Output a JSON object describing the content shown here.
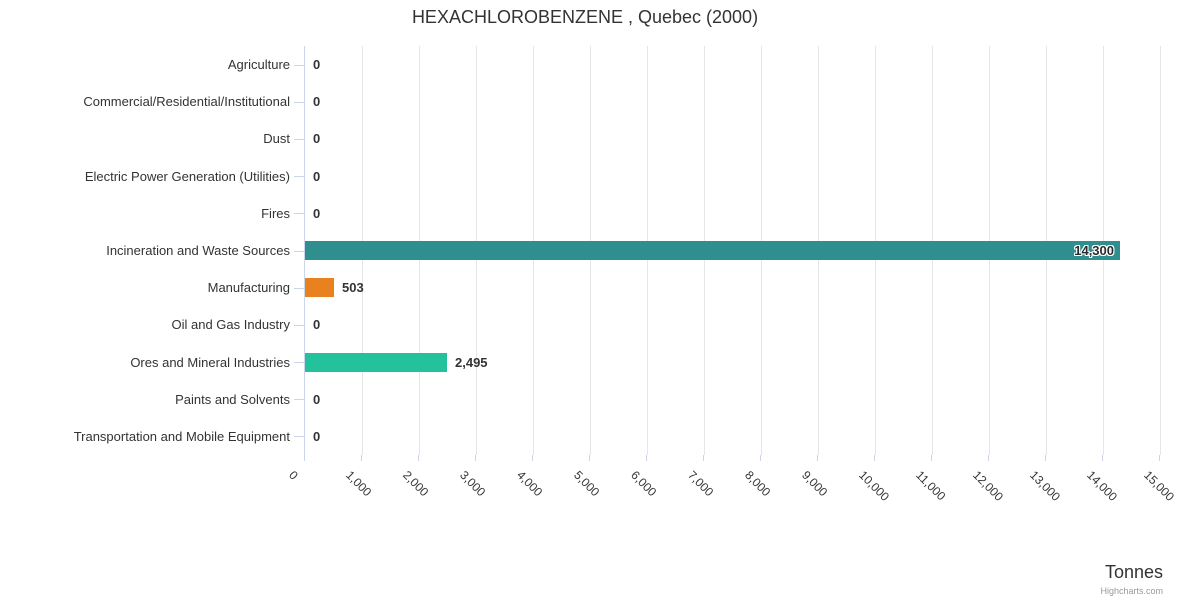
{
  "chart": {
    "title": "HEXACHLOROBENZENE , Quebec (2000)",
    "value_axis_title": "Tonnes",
    "credits": "Highcharts.com"
  },
  "chart_data": {
    "type": "bar",
    "orientation": "horizontal",
    "title": "HEXACHLOROBENZENE , Quebec (2000)",
    "xlabel": "Tonnes",
    "ylabel": "",
    "categories": [
      "Agriculture",
      "Commercial/Residential/Institutional",
      "Dust",
      "Electric Power Generation (Utilities)",
      "Fires",
      "Incineration and Waste Sources",
      "Manufacturing",
      "Oil and Gas Industry",
      "Ores and Mineral Industries",
      "Paints and Solvents",
      "Transportation and Mobile Equipment"
    ],
    "values": [
      0,
      0,
      0,
      0,
      0,
      14300,
      503,
      0,
      2495,
      0,
      0
    ],
    "value_labels": [
      "0",
      "0",
      "0",
      "0",
      "0",
      "14,300",
      "503",
      "0",
      "2,495",
      "0",
      "0"
    ],
    "bar_colors": [
      null,
      null,
      null,
      null,
      null,
      "#2F8F8E",
      "#E8821E",
      null,
      "#23C29C",
      null,
      null
    ],
    "label_inside": [
      false,
      false,
      false,
      false,
      false,
      true,
      false,
      false,
      false,
      false,
      false
    ],
    "xlim": [
      0,
      15000
    ],
    "tick_interval": 1000,
    "x_ticks": [
      "0",
      "1,000",
      "2,000",
      "3,000",
      "4,000",
      "5,000",
      "6,000",
      "7,000",
      "8,000",
      "9,000",
      "10,000",
      "11,000",
      "12,000",
      "13,000",
      "14,000",
      "15,000"
    ],
    "grid": true,
    "legend": "none"
  },
  "styles": {
    "accent_teal": "#2F8F8E",
    "accent_orange": "#E8821E",
    "accent_green": "#23C29C",
    "axis_line_color": "#CCD6EB",
    "gridline_color": "#E6E6E6",
    "text_color": "#333333",
    "credits_color": "#999999"
  }
}
